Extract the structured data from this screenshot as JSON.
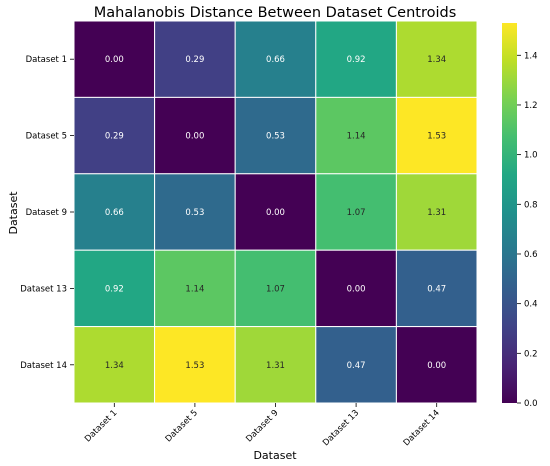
{
  "chart_data": {
    "type": "heatmap",
    "title": "Mahalanobis Distance Between Dataset Centroids",
    "xlabel": "Dataset",
    "ylabel": "Dataset",
    "x_categories": [
      "Dataset 1",
      "Dataset 5",
      "Dataset 9",
      "Dataset 13",
      "Dataset 14"
    ],
    "y_categories": [
      "Dataset 1",
      "Dataset 5",
      "Dataset 9",
      "Dataset 13",
      "Dataset 14"
    ],
    "values": [
      [
        0.0,
        0.29,
        0.66,
        0.92,
        1.34
      ],
      [
        0.29,
        0.0,
        0.53,
        1.14,
        1.53
      ],
      [
        0.66,
        0.53,
        0.0,
        1.07,
        1.31
      ],
      [
        0.92,
        1.14,
        1.07,
        0.0,
        0.47
      ],
      [
        1.34,
        1.53,
        1.31,
        0.47,
        0.0
      ]
    ],
    "value_labels": [
      [
        "0.00",
        "0.29",
        "0.66",
        "0.92",
        "1.34"
      ],
      [
        "0.29",
        "0.00",
        "0.53",
        "1.14",
        "1.53"
      ],
      [
        "0.66",
        "0.53",
        "0.00",
        "1.07",
        "1.31"
      ],
      [
        "0.92",
        "1.14",
        "1.07",
        "0.00",
        "0.47"
      ],
      [
        "1.34",
        "1.53",
        "1.31",
        "0.47",
        "0.00"
      ]
    ],
    "colormap": "viridis",
    "colorbar_range": [
      0.0,
      1.53
    ],
    "colorbar_ticks": [
      0.0,
      0.2,
      0.4,
      0.6,
      0.8,
      1.0,
      1.2,
      1.4
    ],
    "colorbar_tick_labels": [
      "0.0",
      "0.2",
      "0.4",
      "0.6",
      "0.8",
      "1.0",
      "1.2",
      "1.4"
    ],
    "grid": true,
    "grid_color": "#ffffff"
  }
}
